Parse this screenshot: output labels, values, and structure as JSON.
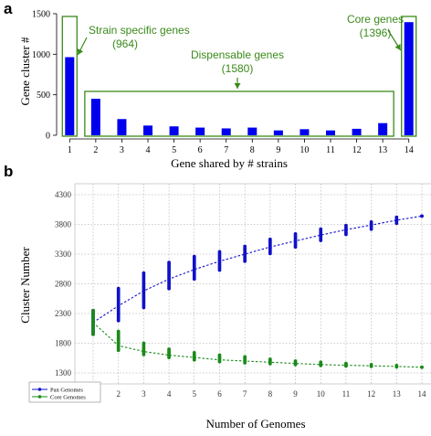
{
  "chart_data": [
    {
      "panel": "a",
      "type": "bar",
      "xlabel": "Gene shared by # strains",
      "ylabel": "Gene cluster #",
      "categories": [
        "1",
        "2",
        "3",
        "4",
        "5",
        "6",
        "7",
        "8",
        "9",
        "10",
        "11",
        "12",
        "13",
        "14"
      ],
      "values": [
        964,
        450,
        200,
        120,
        110,
        95,
        85,
        95,
        60,
        75,
        60,
        80,
        150,
        1396
      ],
      "ylim": [
        0,
        1500
      ],
      "yticks": [
        "0",
        "500",
        "1000",
        "1500"
      ],
      "bar_color": "#0000ee",
      "annotation_color": "#3a8a1a",
      "annotations": [
        {
          "label": "Strain specific genes",
          "value": "(964)"
        },
        {
          "label": "Dispensable genes",
          "value": "(1580)"
        },
        {
          "label": "Core genes",
          "value": "(1396)"
        }
      ]
    },
    {
      "panel": "b",
      "type": "scatter",
      "xlabel": "Number of Genomes",
      "ylabel": "Cluster Number",
      "xlim": [
        1,
        14
      ],
      "ylim": [
        1300,
        4300
      ],
      "xticks": [
        "1",
        "2",
        "3",
        "4",
        "5",
        "6",
        "7",
        "8",
        "9",
        "10",
        "11",
        "12",
        "13",
        "14"
      ],
      "yticks": [
        "1300",
        "1800",
        "2300",
        "2800",
        "3300",
        "3800",
        "4300"
      ],
      "grid": true,
      "legend_position": "bottom-left",
      "series": [
        {
          "name": "Pan Genomes",
          "color": "#1010c8",
          "x": [
            1,
            2,
            3,
            4,
            5,
            6,
            7,
            8,
            9,
            10,
            11,
            12,
            13,
            14
          ],
          "mean": [
            2150,
            2430,
            2680,
            2880,
            3040,
            3180,
            3300,
            3420,
            3520,
            3620,
            3710,
            3790,
            3870,
            3940
          ],
          "min": [
            1950,
            2180,
            2400,
            2720,
            2880,
            3030,
            3180,
            3310,
            3420,
            3530,
            3630,
            3720,
            3820,
            3940
          ],
          "max": [
            2350,
            2720,
            2980,
            3160,
            3260,
            3340,
            3430,
            3550,
            3640,
            3720,
            3780,
            3840,
            3920,
            3940
          ]
        },
        {
          "name": "Core Genomes",
          "color": "#1a8a1a",
          "x": [
            1,
            2,
            3,
            4,
            5,
            6,
            7,
            8,
            9,
            10,
            11,
            12,
            13,
            14
          ],
          "mean": [
            2150,
            1760,
            1660,
            1600,
            1560,
            1520,
            1500,
            1480,
            1460,
            1440,
            1430,
            1420,
            1410,
            1396
          ],
          "min": [
            1950,
            1680,
            1610,
            1560,
            1520,
            1490,
            1470,
            1455,
            1440,
            1425,
            1415,
            1410,
            1400,
            1396
          ],
          "max": [
            2350,
            2000,
            1800,
            1700,
            1640,
            1600,
            1570,
            1530,
            1500,
            1480,
            1460,
            1440,
            1425,
            1396
          ]
        }
      ]
    }
  ]
}
